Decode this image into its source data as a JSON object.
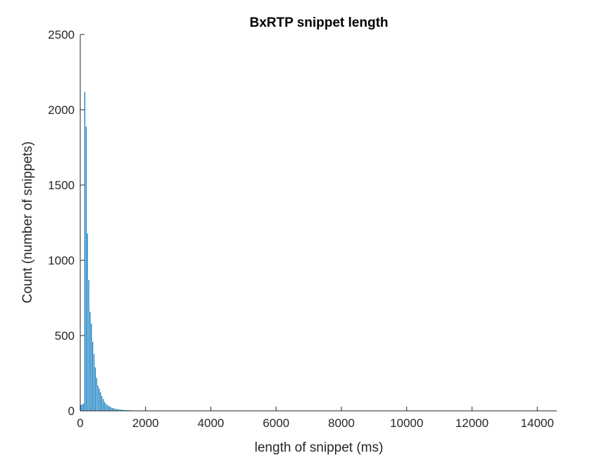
{
  "chart_data": {
    "type": "bar",
    "title": "BxRTP snippet length",
    "xlabel": "length of snippet (ms)",
    "ylabel": "Count (number of snippets)",
    "xlim": [
      0,
      14600
    ],
    "ylim": [
      0,
      2500
    ],
    "xticks": [
      0,
      2000,
      4000,
      6000,
      8000,
      10000,
      12000,
      14000
    ],
    "yticks": [
      0,
      500,
      1000,
      1500,
      2000,
      2500
    ],
    "bin_width": 40,
    "bin_start": 0,
    "bar_color": "#0072BD",
    "grid": false,
    "counts": [
      40,
      45,
      50,
      2120,
      1890,
      1180,
      870,
      660,
      580,
      460,
      380,
      290,
      220,
      170,
      150,
      125,
      100,
      80,
      62,
      50,
      42,
      35,
      30,
      25,
      21,
      18,
      16,
      14,
      12,
      11,
      10,
      9,
      8,
      7,
      7,
      6,
      6,
      5,
      5,
      5,
      4,
      4,
      4,
      4,
      3,
      3,
      3,
      3,
      3,
      2,
      2,
      2,
      2,
      2,
      2,
      2,
      2,
      2,
      1,
      1,
      1,
      1,
      1,
      1,
      1,
      1,
      1,
      1,
      1,
      1,
      1,
      1,
      1,
      1,
      1
    ]
  }
}
